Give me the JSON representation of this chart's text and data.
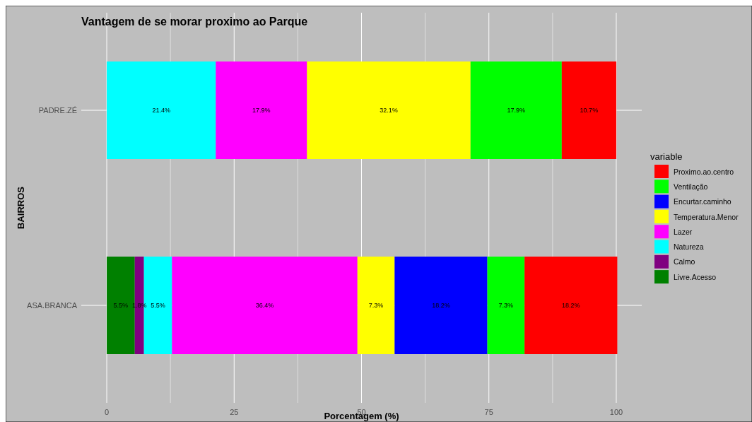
{
  "chart_data": {
    "type": "bar",
    "orientation": "horizontal",
    "stacked": true,
    "title": "Vantagem de se morar proximo ao Parque",
    "xlabel": "Porcentagem (%)",
    "ylabel": "BAIRROS",
    "legend_title": "variable",
    "legend": "right",
    "grid": true,
    "categories": [
      "PADRE.ZÉ",
      "ASA.BRANCA"
    ],
    "xlim": [
      -5,
      105
    ],
    "xticks": [
      0,
      25,
      50,
      75,
      100
    ],
    "series": [
      {
        "name": "Livre.Acesso",
        "color": "#008000",
        "values": [
          null,
          5.5
        ],
        "value_labels": [
          null,
          "5.5%"
        ]
      },
      {
        "name": "Calmo",
        "color": "#800080",
        "values": [
          null,
          1.8
        ],
        "value_labels": [
          null,
          "1.8%"
        ]
      },
      {
        "name": "Natureza",
        "color": "#00ffff",
        "values": [
          21.4,
          5.5
        ],
        "value_labels": [
          "21.4%",
          "5.5%"
        ]
      },
      {
        "name": "Lazer",
        "color": "#ff00ff",
        "values": [
          17.9,
          36.4
        ],
        "value_labels": [
          "17.9%",
          "36.4%"
        ]
      },
      {
        "name": "Temperatura.Menor",
        "color": "#ffff00",
        "values": [
          32.1,
          7.3
        ],
        "value_labels": [
          "32.1%",
          "7.3%"
        ]
      },
      {
        "name": "Encurtar.caminho",
        "color": "#0000ff",
        "values": [
          null,
          18.2
        ],
        "value_labels": [
          null,
          "18.2%"
        ]
      },
      {
        "name": "Ventilação",
        "color": "#00ff00",
        "values": [
          17.9,
          7.3
        ],
        "value_labels": [
          "17.9%",
          "7.3%"
        ]
      },
      {
        "name": "Proximo.ao.centro",
        "color": "#ff0000",
        "values": [
          10.7,
          18.2
        ],
        "value_labels": [
          "10.7%",
          "18.2%"
        ]
      }
    ]
  }
}
